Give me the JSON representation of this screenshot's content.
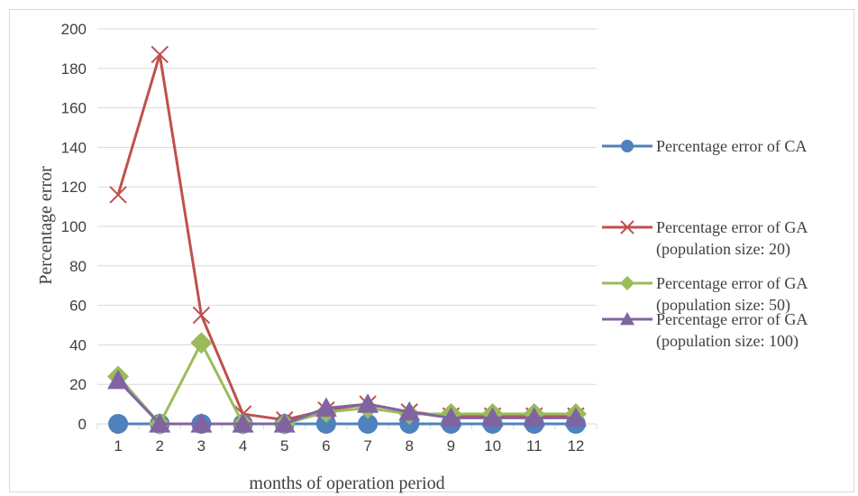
{
  "chart_data": {
    "type": "line",
    "xlabel": "months of operation period",
    "ylabel": "Percentage error",
    "ylim": [
      0,
      200
    ],
    "yticks": [
      0,
      20,
      40,
      60,
      80,
      100,
      120,
      140,
      160,
      180,
      200
    ],
    "categories": [
      "1",
      "2",
      "3",
      "4",
      "5",
      "6",
      "7",
      "8",
      "9",
      "10",
      "11",
      "12"
    ],
    "grid": "horizontal",
    "legend_position": "right",
    "series": [
      {
        "name": "Percentage error of CA",
        "legend_lines": [
          "Percentage error of CA"
        ],
        "color": "#4f81bd",
        "marker": "circle",
        "values": [
          0,
          0,
          0,
          0,
          0,
          0,
          0,
          0,
          0,
          0,
          0,
          0
        ]
      },
      {
        "name": "Percentage error of GA (population size: 20)",
        "legend_lines": [
          "Percentage error of GA",
          "(population size: 20)"
        ],
        "color": "#c0504d",
        "marker": "x",
        "values": [
          116,
          187,
          55,
          5,
          2,
          7,
          10,
          6,
          4,
          4,
          4,
          4
        ]
      },
      {
        "name": "Percentage error of GA (population size: 50)",
        "legend_lines": [
          "Percentage error of GA",
          "(population size: 50)"
        ],
        "color": "#9bbb59",
        "marker": "diamond",
        "values": [
          24,
          0,
          41,
          0,
          0,
          6,
          8,
          5,
          5,
          5,
          5,
          5
        ]
      },
      {
        "name": "Percentage error of GA (population size: 100)",
        "legend_lines": [
          "Percentage error of GA",
          "(population size: 100)"
        ],
        "color": "#8064a2",
        "marker": "triangle",
        "values": [
          22,
          0,
          0,
          0,
          0,
          8,
          10,
          6,
          3,
          3,
          3,
          3
        ]
      }
    ]
  }
}
